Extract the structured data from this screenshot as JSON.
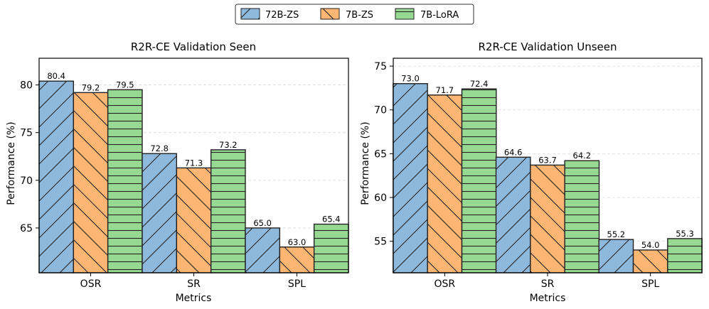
{
  "legend": {
    "entries": [
      {
        "name": "72B-ZS",
        "color": "#8fb9dc"
      },
      {
        "name": "7B-ZS",
        "color": "#fdb574"
      },
      {
        "name": "7B-LoRA",
        "color": "#97d992"
      }
    ]
  },
  "chart_data": [
    {
      "type": "bar",
      "title": "R2R-CE Validation Seen",
      "xlabel": "Metrics",
      "ylabel": "Performance (%)",
      "categories": [
        "OSR",
        "SR",
        "SPL"
      ],
      "ylim": [
        60.3,
        82.8
      ],
      "yticks": [
        65,
        70,
        75,
        80
      ],
      "grid": "y-dashed",
      "series": [
        {
          "name": "72B-ZS",
          "values": [
            80.4,
            72.8,
            65.0
          ],
          "labels": [
            "80.4",
            "72.8",
            "65.0"
          ]
        },
        {
          "name": "7B-ZS",
          "values": [
            79.2,
            71.3,
            63.0
          ],
          "labels": [
            "79.2",
            "71.3",
            "63.0"
          ]
        },
        {
          "name": "7B-LoRA",
          "values": [
            79.5,
            73.2,
            65.4
          ],
          "labels": [
            "79.5",
            "73.2",
            "65.4"
          ]
        }
      ]
    },
    {
      "type": "bar",
      "title": "R2R-CE Validation Unseen",
      "xlabel": "Metrics",
      "ylabel": "Performance (%)",
      "categories": [
        "OSR",
        "SR",
        "SPL"
      ],
      "ylim": [
        51.4,
        75.9
      ],
      "yticks": [
        55,
        60,
        65,
        70,
        75
      ],
      "grid": "y-dashed",
      "series": [
        {
          "name": "72B-ZS",
          "values": [
            73.0,
            64.6,
            55.2
          ],
          "labels": [
            "73.0",
            "64.6",
            "55.2"
          ]
        },
        {
          "name": "7B-ZS",
          "values": [
            71.7,
            63.7,
            54.0
          ],
          "labels": [
            "71.7",
            "63.7",
            "54.0"
          ]
        },
        {
          "name": "7B-LoRA",
          "values": [
            72.4,
            64.2,
            55.3
          ],
          "labels": [
            "72.4",
            "64.2",
            "55.3"
          ]
        }
      ]
    }
  ]
}
